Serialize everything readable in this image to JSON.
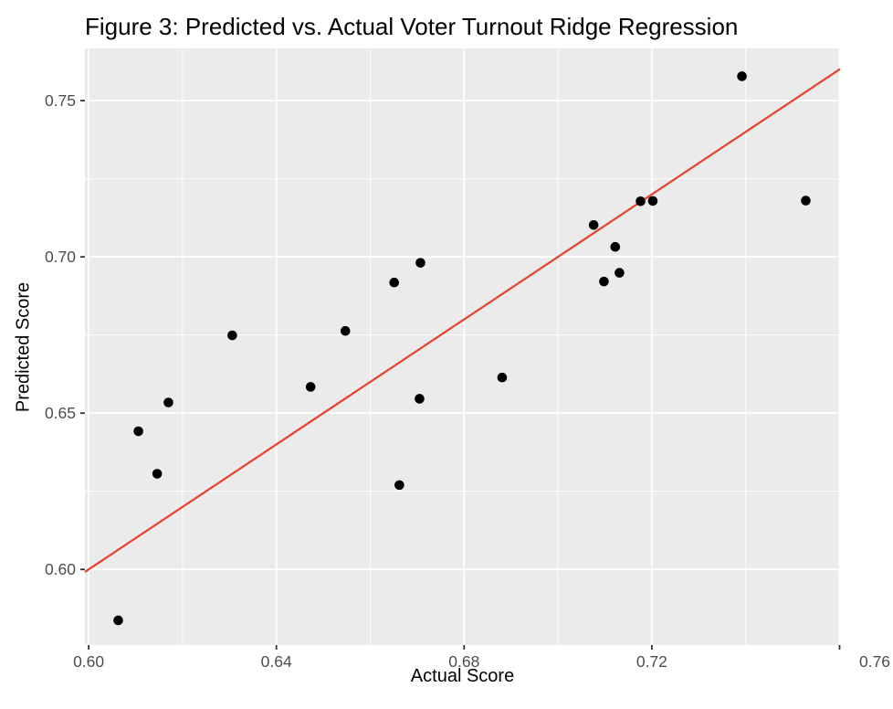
{
  "chart_data": {
    "type": "scatter",
    "title": "Figure 3: Predicted vs. Actual Voter Turnout Ridge Regression",
    "xlabel": "Actual Score",
    "ylabel": "Predicted Score",
    "xlim": [
      0.5992,
      0.7601
    ],
    "ylim": [
      0.5758,
      0.7667
    ],
    "x_tick_values": [
      0.6,
      0.64,
      0.68,
      0.72,
      0.76
    ],
    "x_tick_labels": [
      "0.60",
      "0.64",
      "0.68",
      "0.72",
      "0.76"
    ],
    "y_tick_values": [
      0.6,
      0.65,
      0.7,
      0.75
    ],
    "y_tick_labels": [
      "0.60",
      "0.65",
      "0.70",
      "0.75"
    ],
    "x_minor_gridlines": [
      0.62,
      0.66,
      0.7,
      0.74
    ],
    "y_minor_gridlines": [
      0.625,
      0.675,
      0.725
    ],
    "grid": "on",
    "legend": "none",
    "points": [
      [
        0.6063,
        0.5837
      ],
      [
        0.6106,
        0.6442
      ],
      [
        0.6146,
        0.6306
      ],
      [
        0.617,
        0.6534
      ],
      [
        0.6306,
        0.6749
      ],
      [
        0.6473,
        0.6584
      ],
      [
        0.6547,
        0.6763
      ],
      [
        0.6651,
        0.6918
      ],
      [
        0.6662,
        0.627
      ],
      [
        0.6707,
        0.6981
      ],
      [
        0.6705,
        0.6546
      ],
      [
        0.6881,
        0.6614
      ],
      [
        0.7076,
        0.7102
      ],
      [
        0.7098,
        0.6921
      ],
      [
        0.7122,
        0.7032
      ],
      [
        0.7131,
        0.6949
      ],
      [
        0.7176,
        0.7178
      ],
      [
        0.7202,
        0.7179
      ],
      [
        0.7392,
        0.7578
      ],
      [
        0.7528,
        0.718
      ]
    ],
    "line": {
      "type": "identity",
      "slope": 1,
      "intercept": 0,
      "color": "#E8402C"
    },
    "colors": {
      "panel_bg": "#EBEBEB",
      "grid": "#FFFFFF",
      "point": "#000000",
      "tick_label": "#4D4D4D",
      "tick_mark": "#333333",
      "title": "#000000",
      "axis_title": "#000000"
    }
  }
}
